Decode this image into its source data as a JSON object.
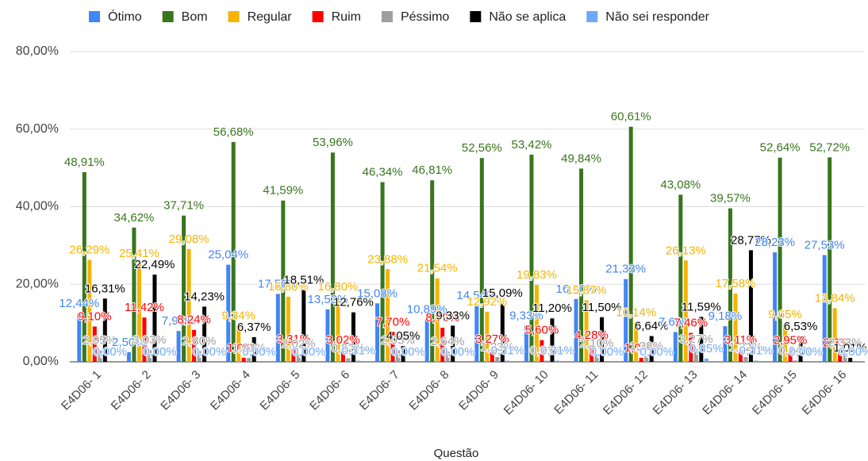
{
  "chart_data": {
    "type": "bar",
    "x_label": "Questão",
    "categories": [
      "E4D06- 1",
      "E4D06- 2",
      "E4D06- 3",
      "E4D06- 4",
      "E4D06- 5",
      "E4D06- 6",
      "E4D06- 7",
      "E4D06- 8",
      "E4D06- 9",
      "E4D06- 10",
      "E4D06- 11",
      "E4D06- 12",
      "E4D06- 13",
      "E4D06- 14",
      "E4D06- 15",
      "E4D06- 16"
    ],
    "ylim": [
      0,
      80
    ],
    "yticks": [
      {
        "value": 0,
        "label": "0,00%"
      },
      {
        "value": 20,
        "label": "20,00%"
      },
      {
        "value": 40,
        "label": "40,00%"
      },
      {
        "value": 60,
        "label": "60,00%"
      },
      {
        "value": 80,
        "label": "80,00%"
      }
    ],
    "grid": true,
    "legend": "top",
    "series": [
      {
        "name": "Ótimo",
        "color": "#4285f4",
        "values": [
          12.44,
          2.5,
          7.95,
          25.04,
          17.5,
          13.53,
          15.08,
          10.89,
          14.54,
          9.33,
          16.2,
          21.33,
          7.69,
          9.18,
          28.23,
          27.53
        ],
        "value_labels": [
          "12,44%",
          "2,50%",
          "7,95%",
          "25,04%",
          "17,50%",
          "13,53%",
          "15,08%",
          "10,89%",
          "14,54%",
          "9,33%",
          "16,20%",
          "21,33%",
          "7,69%",
          "9,18%",
          "28,23%",
          "27,53%"
        ]
      },
      {
        "name": "Bom",
        "color": "#38761d",
        "values": [
          48.91,
          34.62,
          37.71,
          56.68,
          41.59,
          53.96,
          46.34,
          46.81,
          52.56,
          53.42,
          49.84,
          60.61,
          43.08,
          39.57,
          52.64,
          52.72
        ],
        "value_labels": [
          "48,91%",
          "34,62%",
          "37,71%",
          "56,68%",
          "41,59%",
          "53,96%",
          "46,34%",
          "46,81%",
          "52,56%",
          "53,42%",
          "49,84%",
          "60,61%",
          "43,08%",
          "39,57%",
          "52,64%",
          "52,72%"
        ]
      },
      {
        "name": "Regular",
        "color": "#f4b400",
        "values": [
          26.29,
          25.41,
          29.08,
          9.34,
          16.8,
          16.8,
          23.88,
          21.54,
          12.92,
          19.83,
          15.87,
          10.14,
          26.13,
          17.58,
          9.65,
          13.84
        ],
        "value_labels": [
          "26,29%",
          "25,41%",
          "29,08%",
          "9,34%",
          "16,80%",
          "16,80%",
          "23,88%",
          "21,54%",
          "12,92%",
          "19,83%",
          "15,87%",
          "10,14%",
          "26,13%",
          "17,58%",
          "9,65%",
          "13,84%"
        ]
      },
      {
        "name": "Ruim",
        "color": "#ff0000",
        "values": [
          9.1,
          11.42,
          8.24,
          1.06,
          3.31,
          3.02,
          7.7,
          8.79,
          3.27,
          5.6,
          4.28,
          1.04,
          7.46,
          3.11,
          2.95,
          2.35
        ],
        "value_labels": [
          "9,10%",
          "11,42%",
          "8,24%",
          "1,06%",
          "3,31%",
          "3,02%",
          "7,70%",
          "8,79%",
          "3,27%",
          "5,60%",
          "4,28%",
          "1,04%",
          "7,46%",
          "3,11%",
          "2,95%",
          "2,35%"
        ]
      },
      {
        "name": "Péssimo",
        "color": "#9e9e9e",
        "values": [
          2.95,
          3.03,
          2.8,
          1.01,
          2.02,
          0.92,
          2.95,
          2.64,
          1.23,
          0.31,
          2.1,
          1.38,
          3.27,
          1.22,
          0.34,
          2.33
        ],
        "value_labels": [
          "2,95%",
          "3,03%",
          "2,80%",
          "1,01%",
          "2,02%",
          "0,92%",
          "2,95%",
          "2,64%",
          "1,23%",
          "0,31%",
          "2,10%",
          "1,38%",
          "3,27%",
          "1,22%",
          "0,34%",
          "2,33%"
        ]
      },
      {
        "name": "Não se aplica",
        "color": "#000000",
        "values": [
          16.31,
          22.49,
          14.23,
          6.37,
          18.51,
          12.76,
          4.05,
          9.33,
          15.09,
          11.2,
          11.5,
          6.64,
          11.59,
          28.77,
          6.53,
          1.01
        ],
        "value_labels": [
          "16,31%",
          "22,49%",
          "14,23%",
          "6,37%",
          "18,51%",
          "12,76%",
          "4,05%",
          "9,33%",
          "15,09%",
          "11,20%",
          "11,50%",
          "6,64%",
          "11,59%",
          "28,77%",
          "6,53%",
          "1,01%"
        ]
      },
      {
        "name": "Não sei responder",
        "color": "#6fa8f7",
        "values": [
          0,
          0,
          0,
          0,
          0,
          0.31,
          0,
          0,
          0.31,
          0.31,
          0,
          0,
          0.85,
          0.31,
          0,
          0
        ],
        "value_labels": [
          "0,00%",
          "0,00%",
          "0,00%",
          "0,00%",
          "0,00%",
          "0,31%",
          "0,00%",
          "0,00%",
          "0,31%",
          "0,31%",
          "0,00%",
          "0,00%",
          "0,85%",
          "0,31%",
          "0,00%",
          "0,00%"
        ]
      }
    ]
  }
}
